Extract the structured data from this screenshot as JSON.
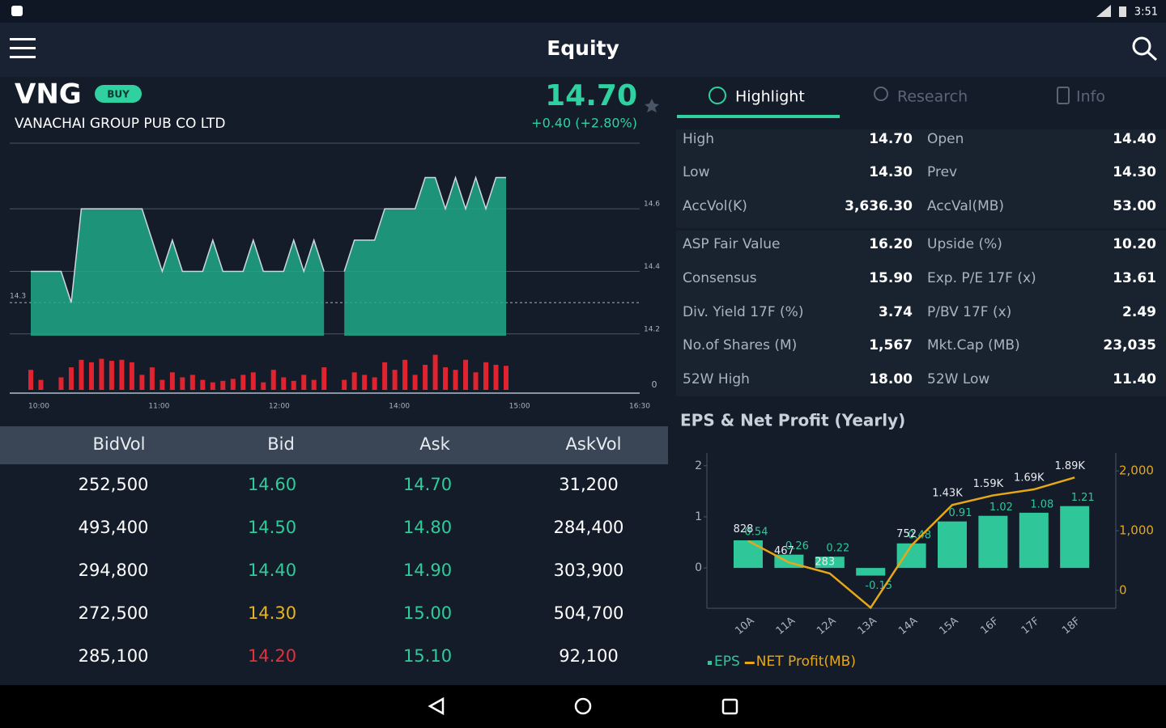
{
  "status_bar": {
    "time": "3:51"
  },
  "header": {
    "title": "Equity"
  },
  "stock": {
    "symbol": "VNG",
    "badge": "BUY",
    "company": "VANACHAI GROUP PUB CO LTD",
    "price": "14.70",
    "change": "+0.40 (+2.80%)"
  },
  "tabs": [
    "Highlight",
    "Research",
    "Info"
  ],
  "stats": {
    "group1": [
      [
        "High",
        "14.70",
        "Open",
        "14.40"
      ],
      [
        "Low",
        "14.30",
        "Prev",
        "14.30"
      ],
      [
        "AccVol(K)",
        "3,636.30",
        "AccVal(MB)",
        "53.00"
      ]
    ],
    "group2": [
      [
        "ASP Fair Value",
        "16.20",
        "Upside (%)",
        "10.20"
      ],
      [
        "Consensus",
        "15.90",
        "Exp. P/E 17F (x)",
        "13.61"
      ],
      [
        "Div. Yield 17F (%)",
        "3.74",
        "P/BV 17F (x)",
        "2.49"
      ],
      [
        "No.of Shares (M)",
        "1,567",
        "Mkt.Cap (MB)",
        "23,035"
      ],
      [
        "52W High",
        "18.00",
        "52W Low",
        "11.40"
      ]
    ]
  },
  "order_book": {
    "columns": [
      "BidVol",
      "Bid",
      "Ask",
      "AskVol"
    ],
    "rows": [
      [
        "252,500",
        "14.60",
        "14.70",
        "31,200"
      ],
      [
        "493,400",
        "14.50",
        "14.80",
        "284,400"
      ],
      [
        "294,800",
        "14.40",
        "14.90",
        "303,900"
      ],
      [
        "272,500",
        "14.30",
        "15.00",
        "504,700"
      ],
      [
        "285,100",
        "14.20",
        "15.10",
        "92,100"
      ]
    ],
    "bid_colors": [
      "#2ecc9a",
      "#2ecc9a",
      "#2ecc9a",
      "#e6b422",
      "#e0323c"
    ],
    "ask_color": "#2ecc9a"
  },
  "chart_data": [
    {
      "type": "area",
      "values": [
        14.4,
        14.4,
        14.4,
        14.4,
        14.3,
        14.6,
        14.6,
        14.6,
        14.6,
        14.6,
        14.6,
        14.6,
        14.5,
        14.4,
        14.5,
        14.4,
        14.4,
        14.4,
        14.5,
        14.4,
        14.4,
        14.4,
        14.5,
        14.4,
        14.4,
        14.4,
        14.5,
        14.4,
        14.5,
        14.4,
        null,
        14.4,
        14.5,
        14.5,
        14.5,
        14.6,
        14.6,
        14.6,
        14.6,
        14.7,
        14.7,
        14.6,
        14.7,
        14.6,
        14.7,
        14.6,
        14.7,
        14.7
      ],
      "color": "#1fa888",
      "ylim": [
        14.14,
        14.81
      ],
      "yticks": [
        14.6,
        14.4,
        14.2
      ],
      "prev": 14.3,
      "time_labels": [
        "10:00",
        "11:00",
        "12:00",
        "14:00",
        "15:00",
        "16:30"
      ],
      "volume": {
        "values": [
          40,
          20,
          0,
          25,
          45,
          60,
          55,
          62,
          58,
          60,
          55,
          30,
          45,
          20,
          35,
          25,
          30,
          20,
          15,
          18,
          22,
          30,
          35,
          15,
          40,
          25,
          18,
          30,
          20,
          45,
          0,
          20,
          35,
          30,
          25,
          55,
          40,
          60,
          30,
          50,
          70,
          45,
          40,
          60,
          35,
          55,
          50,
          48
        ],
        "color": "#e0232e",
        "ylim": [
          0,
          100
        ],
        "yticks": [
          0
        ]
      }
    },
    {
      "type": "bar-line",
      "title": "EPS & Net Profit (Yearly)",
      "categories": [
        "10A",
        "11A",
        "12A",
        "13A",
        "14A",
        "15A",
        "16F",
        "17F",
        "18F"
      ],
      "series": [
        {
          "name": "EPS",
          "color": "#2fc79a",
          "values": [
            0.54,
            0.26,
            0.22,
            -0.15,
            0.48,
            0.91,
            1.02,
            1.08,
            1.21
          ]
        },
        {
          "name": "NET Profit(MB)",
          "color": "#e6a817",
          "axis": "y2",
          "values": [
            828,
            467,
            283,
            -290,
            752,
            1430,
            1590,
            1690,
            1890
          ],
          "value_labels": [
            "828",
            "467",
            "283",
            null,
            "752",
            "1.43K",
            "1.59K",
            "1.69K",
            "1.89K"
          ]
        }
      ],
      "ylim": [
        -0.79,
        2.25
      ],
      "yticks": [
        0,
        1,
        2
      ],
      "y2lim": [
        -300,
        2300
      ],
      "y2ticks": [
        0,
        {
          "value": 1000,
          "label": "1,000"
        },
        {
          "value": 2000,
          "label": "2,000"
        }
      ]
    }
  ]
}
